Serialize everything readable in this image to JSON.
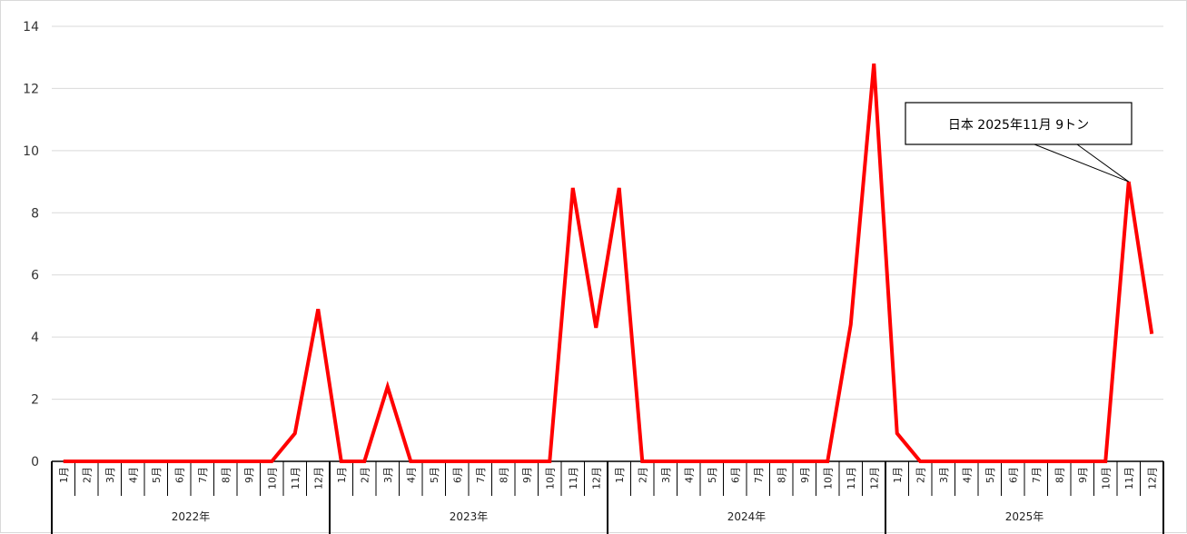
{
  "chart_data": {
    "type": "line",
    "title": "",
    "xlabel": "",
    "ylabel": "",
    "ylim": [
      0,
      14
    ],
    "yticks": [
      0,
      2,
      4,
      6,
      8,
      10,
      12,
      14
    ],
    "grid": true,
    "legend": "none",
    "line_color": "#ff0000",
    "month_labels": [
      "1月",
      "2月",
      "3月",
      "4月",
      "5月",
      "6月",
      "7月",
      "8月",
      "9月",
      "10月",
      "11月",
      "12月"
    ],
    "year_labels": [
      "2022年",
      "2023年",
      "2024年",
      "2025年"
    ],
    "series": [
      {
        "values": [
          0,
          0,
          0,
          0,
          0,
          0,
          0,
          0,
          0,
          0,
          0.9,
          4.9,
          0,
          0,
          2.4,
          0,
          0,
          0,
          0,
          0,
          0,
          0,
          8.8,
          4.3,
          8.8,
          0,
          0,
          0,
          0,
          0,
          0,
          0,
          0,
          0,
          4.4,
          12.8,
          0.9,
          0,
          0,
          0,
          0,
          0,
          0,
          0,
          0,
          0,
          9,
          4.1
        ]
      }
    ],
    "annotations": [
      {
        "text": "日本  2025年11月  9トン",
        "index": 46,
        "value": 9
      }
    ]
  }
}
